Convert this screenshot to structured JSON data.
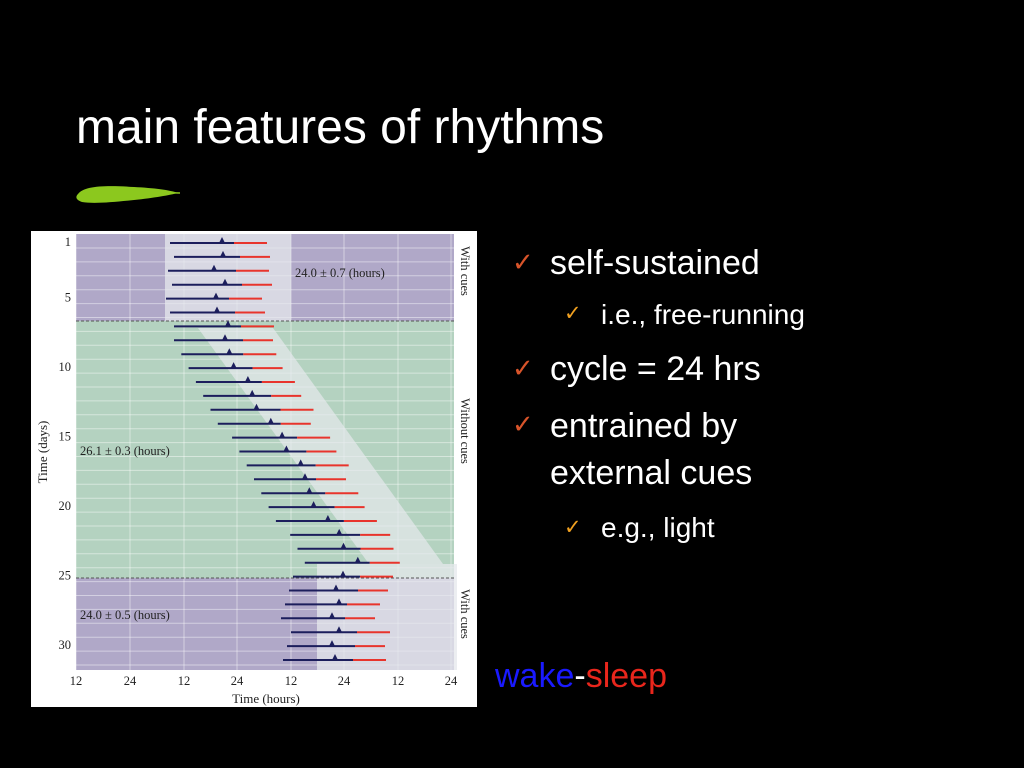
{
  "slide": {
    "title": "main features of rhythms"
  },
  "bullets": [
    {
      "text": "self-sustained",
      "sub": [
        "i.e., free-running"
      ]
    },
    {
      "text": "cycle = 24 hrs",
      "sub": []
    },
    {
      "text": "entrained by external cues",
      "line1": "entrained by",
      "line2": "external cues",
      "sub": [
        "e.g., light"
      ]
    }
  ],
  "legend": {
    "wake": "wake",
    "dash": "-",
    "sleep": "sleep",
    "wake_color": "#1a1aff",
    "sleep_color": "#e8261c"
  },
  "figure": {
    "ylabel": "Time (days)",
    "xlabel": "Time (hours)",
    "xticks": [
      "12",
      "24",
      "12",
      "24",
      "12",
      "24",
      "12",
      "24"
    ],
    "yticks": [
      "1",
      "5",
      "10",
      "15",
      "20",
      "25",
      "30"
    ],
    "section_labels": [
      "With cues",
      "Without cues",
      "With cues"
    ],
    "annotations": [
      "24.0 ± 0.7 (hours)",
      "26.1 ± 0.3 (hours)",
      "24.0 ± 0.5 (hours)"
    ],
    "colors": {
      "cued_bg": "#b0a8c8",
      "free_bg": "#b4d2c0",
      "band": "#e6e8ec",
      "wake": "#1c1e5c",
      "sleep": "#e8342c"
    }
  }
}
